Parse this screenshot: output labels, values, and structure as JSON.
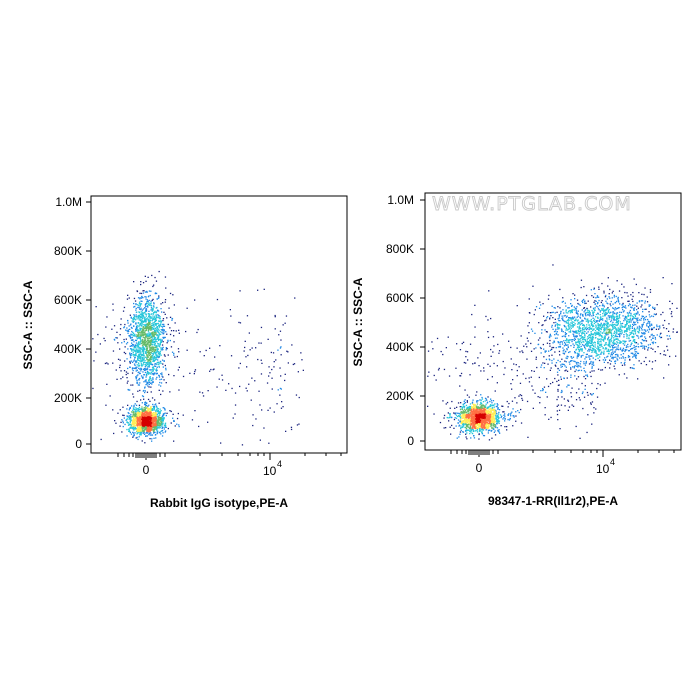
{
  "watermark": "WWW.PTGLAB.COM",
  "chart_data": [
    {
      "type": "scatter",
      "subtype": "flow-cytometry-density-dot-plot",
      "xlabel": "Rabbit IgG isotype,PE-A",
      "ylabel": "SSC-A :: SSC-A",
      "x_scale": "biexponential",
      "x_ticks": [
        0,
        10000
      ],
      "x_tick_labels": [
        "0",
        "10",
        "4"
      ],
      "ylim": [
        -30000,
        1050000
      ],
      "y_ticks": [
        0,
        200000,
        400000,
        600000,
        800000,
        1000000
      ],
      "y_tick_labels": [
        "0",
        "200K",
        "400K",
        "600K",
        "800K",
        "1.0M"
      ],
      "color_scale": [
        "#1a237e",
        "#1e88e5",
        "#26c6da",
        "#66bb6a",
        "#ffee58",
        "#ff7043",
        "#d50000"
      ],
      "populations": [
        {
          "x_center": 0,
          "y_center": 100000,
          "weight": 0.45
        },
        {
          "x_center": 0,
          "y_center": 430000,
          "weight": 0.45
        },
        {
          "x_center": 3000,
          "y_center": 300000,
          "weight": 0.1
        }
      ]
    },
    {
      "type": "scatter",
      "subtype": "flow-cytometry-density-dot-plot",
      "xlabel": "98347-1-RR(Il1r2),PE-A",
      "ylabel": "SSC-A :: SSC-A",
      "x_scale": "biexponential",
      "x_ticks": [
        0,
        10000
      ],
      "x_tick_labels": [
        "0",
        "10",
        "4"
      ],
      "ylim": [
        -30000,
        1050000
      ],
      "y_ticks": [
        0,
        200000,
        400000,
        600000,
        800000,
        1000000
      ],
      "y_tick_labels": [
        "0",
        "200K",
        "400K",
        "600K",
        "800K",
        "1.0M"
      ],
      "color_scale": [
        "#1a237e",
        "#1e88e5",
        "#26c6da",
        "#66bb6a",
        "#ffee58",
        "#ff7043",
        "#d50000"
      ],
      "populations": [
        {
          "x_center": 0,
          "y_center": 100000,
          "weight": 0.45
        },
        {
          "x_center": 10000,
          "y_center": 460000,
          "weight": 0.45
        },
        {
          "x_center": 3000,
          "y_center": 300000,
          "weight": 0.1
        }
      ]
    }
  ]
}
